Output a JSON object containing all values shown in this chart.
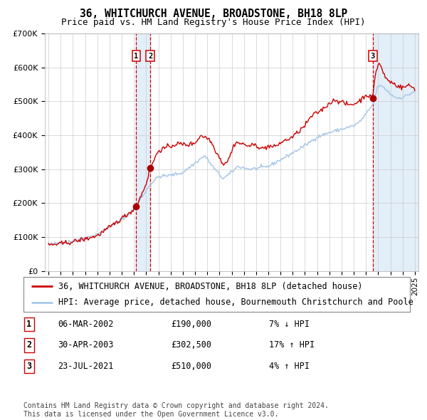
{
  "title": "36, WHITCHURCH AVENUE, BROADSTONE, BH18 8LP",
  "subtitle": "Price paid vs. HM Land Registry's House Price Index (HPI)",
  "ylim": [
    0,
    700000
  ],
  "yticks": [
    0,
    100000,
    200000,
    300000,
    400000,
    500000,
    600000,
    700000
  ],
  "hpi_color": "#a8c8e8",
  "price_color": "#cc0000",
  "dot_color": "#aa0000",
  "vline_color": "#cc0000",
  "shade_color": "#d0e4f4",
  "transactions": [
    {
      "date_num": 2002.18,
      "price": 190000,
      "label": "1"
    },
    {
      "date_num": 2003.33,
      "price": 302500,
      "label": "2"
    },
    {
      "date_num": 2021.56,
      "price": 510000,
      "label": "3"
    }
  ],
  "transaction_table": [
    {
      "num": "1",
      "date": "06-MAR-2002",
      "price": "£190,000",
      "change": "7% ↓ HPI"
    },
    {
      "num": "2",
      "date": "30-APR-2003",
      "price": "£302,500",
      "change": "17% ↑ HPI"
    },
    {
      "num": "3",
      "date": "23-JUL-2021",
      "price": "£510,000",
      "change": "4% ↑ HPI"
    }
  ],
  "legend_entries": [
    "36, WHITCHURCH AVENUE, BROADSTONE, BH18 8LP (detached house)",
    "HPI: Average price, detached house, Bournemouth Christchurch and Poole"
  ],
  "footnote": "Contains HM Land Registry data © Crown copyright and database right 2024.\nThis data is licensed under the Open Government Licence v3.0.",
  "background_color": "#ffffff",
  "grid_color": "#cccccc",
  "title_fontsize": 10.5,
  "subtitle_fontsize": 9,
  "tick_fontsize": 8,
  "legend_fontsize": 8.5,
  "table_fontsize": 8.5,
  "footnote_fontsize": 7
}
